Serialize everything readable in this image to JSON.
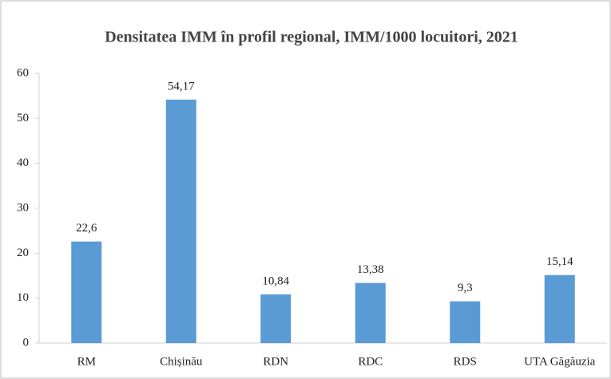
{
  "chart_data": {
    "type": "bar",
    "title": "Densitatea IMM în profil regional, IMM/1000 locuitori, 2021",
    "categories": [
      "RM",
      "Chișinău",
      "RDN",
      "RDC",
      "RDS",
      "UTA Găgăuzia"
    ],
    "values": [
      22.6,
      54.17,
      10.84,
      13.38,
      9.3,
      15.14
    ],
    "value_labels": [
      "22,6",
      "54,17",
      "10,84",
      "13,38",
      "9,3",
      "15,14"
    ],
    "color": "#5b9bd5",
    "ylim": [
      0,
      60
    ],
    "yticks": [
      0,
      10,
      20,
      30,
      40,
      50,
      60
    ],
    "grid": false
  }
}
